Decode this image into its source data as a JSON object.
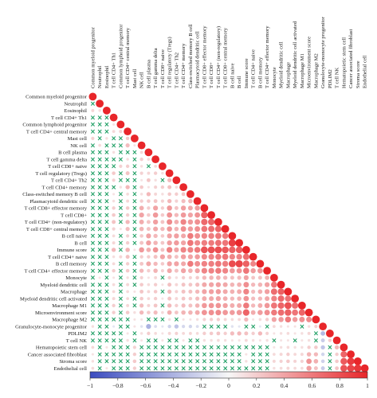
{
  "chart_data": {
    "type": "heatmap",
    "subtype": "lower-triangle correlation matrix",
    "labels": [
      "Common myeloid progenitor",
      "Neutrophil",
      "Eosinophil",
      "T cell CD4+ Th1",
      "Common lymphoid progenitor",
      "T cell CD4+ central memory",
      "Mast cell",
      "NK cell",
      "B cell plasma",
      "T cell gamma delta",
      "T cell CD8+ naive",
      "T cell regulatory (Tregs)",
      "T cell CD4+ Th2",
      "T cell CD4+ memory",
      "Class-switched memory B cell",
      "Plasmacytoid dendritic cell",
      "T cell CD8+ effector memory",
      "T cell CD8+",
      "T cell CD4+ (non-regulatory)",
      "T cell CD8+ central memory",
      "B cell naive",
      "B cell",
      "Immune score",
      "T cell CD4+ naive",
      "B cell memory",
      "T cell CD4+ effector memory",
      "Monocyte",
      "Myeloid dendritic cell",
      "Macrophage",
      "Myeloid dendritic cell activated",
      "Macrophage M1",
      "Microenvironment score",
      "Macrophage M2",
      "Granulocyte-monocyte progenitor",
      "PDLIM2",
      "T cell NK",
      "Hematopoietic stem cell",
      "Cancer associated fibroblast",
      "Stroma score",
      "Endothelial cell"
    ],
    "row_correlations": [
      [
        1
      ],
      [
        0.05,
        1
      ],
      [
        0.16,
        0.12,
        1
      ],
      [
        -0.03,
        0.02,
        0.08,
        1
      ],
      [
        0.04,
        0.05,
        -0.02,
        0.1,
        1
      ],
      [
        0.02,
        0.07,
        0.03,
        0.15,
        0.18,
        1
      ],
      [
        0.18,
        0.03,
        0.12,
        -0.04,
        0.05,
        0.22,
        1
      ],
      [
        0.05,
        0.14,
        0.09,
        0.02,
        0.03,
        0.28,
        0.1,
        1
      ],
      [
        0.03,
        0.02,
        -0.05,
        0.12,
        0.06,
        0.08,
        0.04,
        0.16,
        1
      ],
      [
        -0.02,
        0.05,
        0.04,
        0.07,
        0.02,
        0.12,
        0.06,
        0.2,
        0.14,
        1
      ],
      [
        0.02,
        -0.03,
        0.05,
        0.04,
        0.18,
        0.2,
        0.03,
        0.12,
        0.08,
        0.15,
        1
      ],
      [
        0.06,
        0.04,
        0.02,
        0.22,
        0.09,
        0.25,
        0.07,
        0.18,
        0.16,
        0.2,
        0.12,
        1
      ],
      [
        0.03,
        0.02,
        -0.04,
        0.18,
        0.05,
        0.06,
        0.02,
        0.1,
        0.24,
        0.12,
        0.08,
        0.28,
        1
      ],
      [
        0.02,
        0.05,
        0.03,
        0.08,
        0.12,
        0.3,
        0.06,
        0.22,
        0.1,
        0.18,
        0.2,
        0.26,
        0.14,
        1
      ],
      [
        0.04,
        0.03,
        0.02,
        0.1,
        0.06,
        0.14,
        0.05,
        0.12,
        0.3,
        0.16,
        0.12,
        0.22,
        0.2,
        0.24,
        1
      ],
      [
        0.05,
        0.02,
        0.06,
        0.12,
        0.08,
        0.16,
        0.04,
        0.2,
        0.22,
        0.24,
        0.18,
        0.3,
        0.18,
        0.28,
        0.32,
        1
      ],
      [
        0.03,
        0.06,
        0.02,
        0.2,
        0.05,
        0.22,
        0.08,
        0.35,
        0.2,
        0.4,
        0.2,
        0.45,
        0.25,
        0.42,
        0.38,
        0.44,
        1
      ],
      [
        0.02,
        0.04,
        0.03,
        0.22,
        0.06,
        0.2,
        0.05,
        0.4,
        0.22,
        0.45,
        0.22,
        0.48,
        0.3,
        0.45,
        0.4,
        0.48,
        0.72,
        1
      ],
      [
        0.04,
        0.05,
        0.02,
        0.25,
        0.08,
        0.3,
        0.06,
        0.36,
        0.25,
        0.42,
        0.25,
        0.52,
        0.35,
        0.55,
        0.45,
        0.5,
        0.68,
        0.7,
        1
      ],
      [
        0.03,
        0.02,
        0.04,
        0.18,
        0.1,
        0.28,
        0.05,
        0.32,
        0.26,
        0.38,
        0.3,
        0.45,
        0.32,
        0.5,
        0.44,
        0.5,
        0.62,
        0.66,
        0.7,
        1
      ],
      [
        0.02,
        0.03,
        0.02,
        0.14,
        0.06,
        0.18,
        0.04,
        0.22,
        0.4,
        0.3,
        0.22,
        0.4,
        0.42,
        0.38,
        0.6,
        0.5,
        0.55,
        0.58,
        0.62,
        0.6,
        1
      ],
      [
        0.03,
        0.02,
        0.03,
        0.16,
        0.05,
        0.2,
        0.05,
        0.25,
        0.42,
        0.32,
        0.24,
        0.42,
        0.44,
        0.4,
        0.62,
        0.52,
        0.58,
        0.6,
        0.65,
        0.62,
        0.88,
        1
      ],
      [
        0.05,
        0.08,
        0.04,
        0.3,
        0.06,
        0.32,
        0.1,
        0.45,
        0.35,
        0.48,
        0.26,
        0.56,
        0.4,
        0.55,
        0.55,
        0.6,
        0.78,
        0.8,
        0.82,
        0.76,
        0.72,
        0.74,
        1
      ],
      [
        0.02,
        0.03,
        0.04,
        0.12,
        0.16,
        0.26,
        0.04,
        0.2,
        0.2,
        0.26,
        0.4,
        0.35,
        0.26,
        0.42,
        0.4,
        0.44,
        0.52,
        0.55,
        0.6,
        0.62,
        0.55,
        0.56,
        0.66,
        1
      ],
      [
        0.03,
        0.02,
        0.03,
        0.15,
        0.05,
        0.2,
        0.04,
        0.24,
        0.38,
        0.3,
        0.22,
        0.4,
        0.4,
        0.38,
        0.6,
        0.5,
        0.56,
        0.58,
        0.62,
        0.58,
        0.82,
        0.85,
        0.72,
        0.54,
        1
      ],
      [
        0.04,
        0.05,
        0.02,
        0.2,
        0.05,
        0.22,
        0.06,
        0.3,
        0.2,
        0.32,
        0.18,
        0.38,
        0.26,
        0.4,
        0.34,
        0.4,
        0.55,
        0.56,
        0.6,
        0.55,
        0.45,
        0.48,
        0.62,
        0.44,
        0.46,
        1
      ],
      [
        0.06,
        0.1,
        0.05,
        0.1,
        0.03,
        0.12,
        0.08,
        0.18,
        0.1,
        0.16,
        0.08,
        0.2,
        0.12,
        0.2,
        0.18,
        0.22,
        0.3,
        0.32,
        0.34,
        0.3,
        0.26,
        0.28,
        0.4,
        0.24,
        0.26,
        0.34,
        1
      ],
      [
        0.05,
        0.07,
        0.04,
        0.14,
        0.04,
        0.16,
        0.09,
        0.22,
        0.14,
        0.2,
        0.1,
        0.26,
        0.16,
        0.25,
        0.24,
        0.28,
        0.38,
        0.4,
        0.42,
        0.38,
        0.32,
        0.34,
        0.5,
        0.3,
        0.32,
        0.4,
        0.62,
        1
      ],
      [
        0.06,
        0.08,
        0.05,
        0.15,
        0.03,
        0.14,
        0.1,
        0.24,
        0.16,
        0.22,
        0.08,
        0.28,
        0.18,
        0.26,
        0.26,
        0.3,
        0.4,
        0.42,
        0.44,
        0.38,
        0.34,
        0.36,
        0.55,
        0.28,
        0.34,
        0.42,
        0.66,
        0.72,
        1
      ],
      [
        0.04,
        0.06,
        0.03,
        0.16,
        0.04,
        0.15,
        0.08,
        0.22,
        0.15,
        0.2,
        0.1,
        0.25,
        0.16,
        0.24,
        0.22,
        0.28,
        0.36,
        0.38,
        0.4,
        0.35,
        0.3,
        0.32,
        0.48,
        0.28,
        0.3,
        0.38,
        0.55,
        0.68,
        0.64,
        1
      ],
      [
        0.05,
        0.07,
        0.04,
        0.2,
        0.03,
        0.16,
        0.09,
        0.28,
        0.17,
        0.24,
        0.08,
        0.3,
        0.2,
        0.28,
        0.26,
        0.32,
        0.45,
        0.48,
        0.48,
        0.42,
        0.36,
        0.38,
        0.6,
        0.3,
        0.36,
        0.46,
        0.62,
        0.7,
        0.8,
        0.66,
        1
      ],
      [
        0.06,
        0.09,
        0.05,
        0.2,
        0.04,
        0.22,
        0.12,
        0.3,
        0.22,
        0.28,
        0.14,
        0.34,
        0.24,
        0.32,
        0.32,
        0.36,
        0.48,
        0.5,
        0.52,
        0.46,
        0.44,
        0.46,
        0.7,
        0.36,
        0.44,
        0.5,
        0.6,
        0.66,
        0.72,
        0.62,
        0.7,
        1
      ],
      [
        0.05,
        0.06,
        0.04,
        0.08,
        0.02,
        0.06,
        0.1,
        0.1,
        0.08,
        0.06,
        0.03,
        0.12,
        0.08,
        0.1,
        0.1,
        0.12,
        0.18,
        0.2,
        0.2,
        0.16,
        0.14,
        0.15,
        0.3,
        0.1,
        0.14,
        0.2,
        0.4,
        0.45,
        0.6,
        0.44,
        0.5,
        0.52,
        1
      ],
      [
        0.12,
        0.08,
        0.06,
        -0.1,
        -0.05,
        -0.08,
        0.1,
        -0.12,
        -0.4,
        -0.15,
        -0.1,
        -0.2,
        -0.3,
        -0.18,
        -0.2,
        -0.15,
        -0.05,
        -0.06,
        -0.04,
        -0.08,
        -0.12,
        -0.1,
        0.02,
        -0.05,
        -0.1,
        0.03,
        0.15,
        0.12,
        0.1,
        0.1,
        0.08,
        0.12,
        0.18,
        1
      ],
      [
        0.03,
        0.05,
        0.02,
        0.08,
        0.04,
        0.1,
        0.04,
        0.12,
        0.2,
        0.14,
        0.1,
        0.16,
        0.18,
        0.15,
        0.16,
        0.14,
        0.2,
        0.22,
        0.24,
        0.2,
        0.28,
        0.3,
        0.26,
        0.2,
        0.3,
        0.18,
        0.1,
        0.12,
        0.14,
        0.1,
        0.12,
        0.16,
        0.05,
        -0.35,
        1
      ],
      [
        0.04,
        0.06,
        0.05,
        0.06,
        0.08,
        0.12,
        0.05,
        0.1,
        0.04,
        0.08,
        0.1,
        0.06,
        0.04,
        0.1,
        0.06,
        0.08,
        0.12,
        0.12,
        0.14,
        0.12,
        0.1,
        0.1,
        0.15,
        0.12,
        0.1,
        0.12,
        0.08,
        0.1,
        0.1,
        0.08,
        0.1,
        0.12,
        0.06,
        -0.25,
        0.2,
        1
      ],
      [
        0.15,
        0.06,
        0.1,
        0.02,
        0.03,
        0.05,
        0.18,
        0.04,
        0.02,
        0.06,
        0.03,
        0.05,
        0.02,
        0.06,
        0.05,
        0.06,
        0.05,
        0.04,
        0.06,
        0.05,
        0.04,
        0.04,
        0.08,
        0.05,
        0.04,
        0.06,
        0.1,
        0.12,
        0.14,
        0.12,
        0.12,
        0.2,
        0.22,
        -0.3,
        0.08,
        0.3,
        1
      ],
      [
        0.1,
        0.05,
        0.08,
        0.03,
        0.02,
        0.04,
        0.2,
        0.05,
        0.03,
        0.04,
        0.02,
        0.06,
        0.03,
        0.05,
        0.04,
        0.05,
        0.06,
        0.05,
        0.06,
        0.04,
        0.05,
        0.05,
        0.1,
        0.04,
        0.05,
        0.06,
        0.14,
        0.16,
        0.2,
        0.15,
        0.16,
        0.32,
        0.3,
        -0.2,
        0.06,
        0.2,
        0.7,
        1
      ],
      [
        0.12,
        0.06,
        0.09,
        0.04,
        0.03,
        0.05,
        0.22,
        0.06,
        0.04,
        0.05,
        0.03,
        0.07,
        0.04,
        0.06,
        0.05,
        0.06,
        0.07,
        0.06,
        0.07,
        0.05,
        0.06,
        0.06,
        0.12,
        0.05,
        0.06,
        0.07,
        0.16,
        0.18,
        0.22,
        0.17,
        0.18,
        0.48,
        0.34,
        -0.22,
        0.07,
        0.22,
        0.75,
        0.9,
        1
      ],
      [
        0.14,
        0.05,
        0.1,
        0.02,
        0.02,
        0.04,
        0.2,
        0.04,
        0.02,
        0.04,
        0.02,
        0.05,
        0.02,
        0.04,
        0.04,
        0.05,
        0.05,
        0.04,
        0.05,
        0.04,
        0.04,
        0.04,
        0.08,
        0.04,
        0.04,
        0.05,
        0.12,
        0.14,
        0.16,
        0.14,
        0.14,
        0.42,
        0.26,
        -0.25,
        0.06,
        0.24,
        0.78,
        0.85,
        0.92,
        1
      ]
    ],
    "colorbar": {
      "min": -1,
      "max": 1,
      "ticks": [
        -1,
        -0.8,
        -0.6,
        -0.4,
        -0.2,
        0,
        0.2,
        0.4,
        0.6,
        0.8,
        1
      ],
      "tick_labels": [
        "−1",
        "−0.8",
        "−0.6",
        "−0.4",
        "−0.2",
        "0",
        "0.2",
        "0.4",
        "0.6",
        "0.8",
        "1"
      ],
      "low_color": "#3b4cc0",
      "mid_color": "#f7f7f7",
      "high_color": "#e8262a"
    },
    "nonsignificant_marker": "×",
    "marker_color": "#1a9e62",
    "nonsignificant_threshold": 0.1,
    "legend": "none",
    "grid": "none"
  }
}
